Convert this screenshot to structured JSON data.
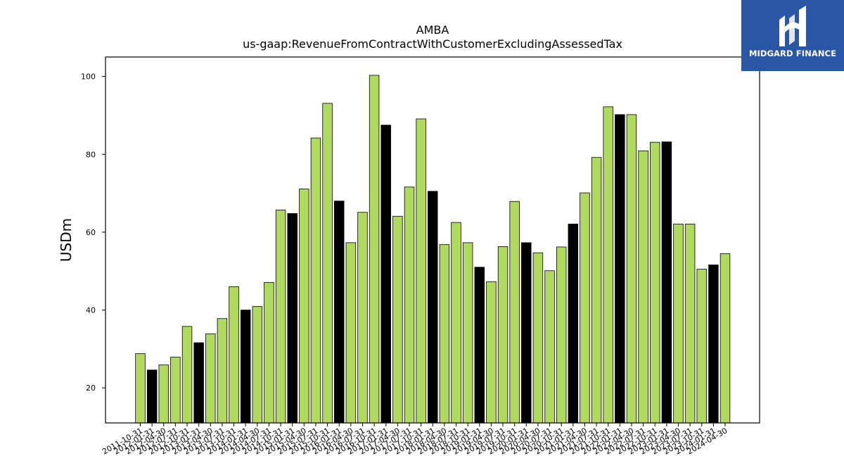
{
  "chart_data": {
    "type": "bar",
    "title": "AMBA",
    "subtitle": "us-gaap:RevenueFromContractWithCustomerExcludingAssessedTax",
    "ylabel": "USDm",
    "xlabel": "",
    "ylim": [
      11,
      105
    ],
    "yticks": [
      20,
      40,
      60,
      80,
      100
    ],
    "grid": false,
    "colors": {
      "default": "#b0d95f",
      "highlight": "#000000",
      "edge": "#000000"
    },
    "categories": [
      "2011-10-31",
      "2012-01-31",
      "2012-04-30",
      "2012-07-31",
      "2012-10-31",
      "2013-01-31",
      "2013-04-30",
      "2013-07-31",
      "2013-10-31",
      "2014-01-31",
      "2014-04-30",
      "2014-07-31",
      "2014-10-31",
      "2015-01-31",
      "2015-04-30",
      "2015-07-31",
      "2015-10-31",
      "2016-01-31",
      "2016-04-30",
      "2016-07-31",
      "2016-10-31",
      "2017-01-31",
      "2017-04-30",
      "2017-07-31",
      "2017-10-31",
      "2018-01-31",
      "2018-04-30",
      "2018-07-31",
      "2018-10-31",
      "2019-01-31",
      "2019-04-30",
      "2019-07-31",
      "2019-10-31",
      "2020-01-31",
      "2020-04-30",
      "2020-07-31",
      "2020-10-31",
      "2021-01-31",
      "2021-04-30",
      "2021-07-31",
      "2021-10-31",
      "2022-01-31",
      "2022-04-30",
      "2022-07-31",
      "2022-10-31",
      "2023-01-31",
      "2023-04-30",
      "2023-07-31",
      "2023-10-31",
      "2024-01-31",
      "2024-04-30"
    ],
    "values": [
      28.8,
      24.6,
      25.9,
      27.9,
      35.8,
      31.6,
      33.9,
      37.8,
      46.0,
      40.0,
      40.9,
      47.1,
      65.7,
      64.8,
      71.1,
      84.2,
      93.1,
      68.0,
      57.3,
      65.1,
      100.3,
      87.5,
      64.1,
      71.6,
      89.1,
      70.5,
      56.8,
      62.5,
      57.3,
      51.0,
      47.3,
      56.3,
      67.9,
      57.3,
      54.7,
      50.1,
      56.2,
      62.1,
      70.1,
      79.2,
      92.2,
      90.2,
      90.2,
      80.9,
      83.1,
      83.2,
      62.1,
      62.1,
      50.5,
      51.6,
      54.5
    ],
    "highlighted": [
      false,
      true,
      false,
      false,
      false,
      true,
      false,
      false,
      false,
      true,
      false,
      false,
      false,
      true,
      false,
      false,
      false,
      true,
      false,
      false,
      false,
      true,
      false,
      false,
      false,
      true,
      false,
      false,
      false,
      true,
      false,
      false,
      false,
      true,
      false,
      false,
      false,
      true,
      false,
      false,
      false,
      true,
      false,
      false,
      false,
      true,
      false,
      false,
      false,
      true,
      false
    ]
  },
  "logo": {
    "text": "MIDGARD FINANCE",
    "icon": "midgard-logo-icon",
    "background": "#2a57a5"
  }
}
